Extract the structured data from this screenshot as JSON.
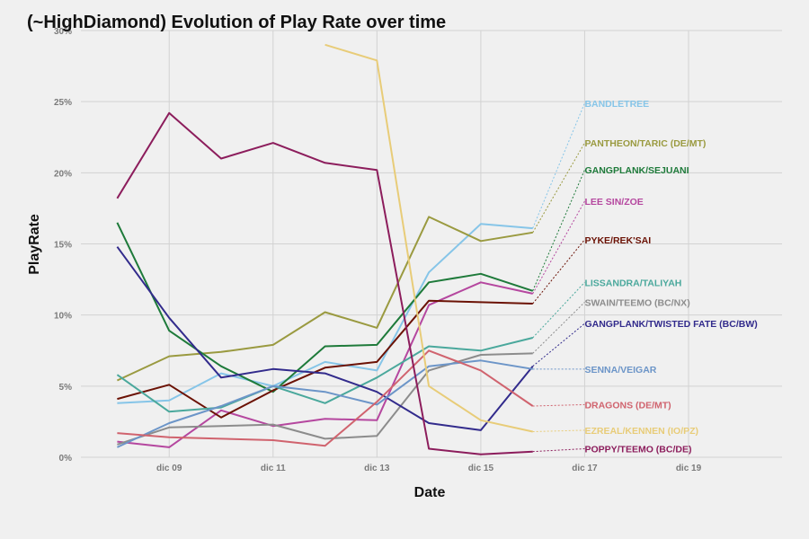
{
  "chart_data": {
    "type": "line",
    "title": "(~HighDiamond) Evolution of Play Rate over time",
    "xlabel": "Date",
    "ylabel": "PlayRate",
    "x": [
      8,
      9,
      10,
      11,
      12,
      13,
      14,
      15,
      16
    ],
    "xlim": [
      7.3,
      20.8
    ],
    "x_ticks": [
      9,
      11,
      13,
      15,
      17,
      19
    ],
    "x_tick_labels": [
      "dic 09",
      "dic 11",
      "dic 13",
      "dic 15",
      "dic 17",
      "dic 19"
    ],
    "ylim": [
      0,
      30
    ],
    "y_ticks": [
      0,
      5,
      10,
      15,
      20,
      25,
      30
    ],
    "y_tick_labels": [
      "0%",
      "5%",
      "10%",
      "15%",
      "20%",
      "25%",
      "30%"
    ],
    "grid": true,
    "legend": "direct labels at right",
    "series": [
      {
        "name": "BANDLETREE",
        "color": "#86c5e8",
        "label_y": 24.9,
        "values": [
          3.8,
          4.0,
          5.9,
          5.0,
          6.7,
          6.1,
          13.0,
          16.4,
          16.1
        ]
      },
      {
        "name": "PANTHEON/TARIC (DE/MT)",
        "color": "#9a9a40",
        "label_y": 22.1,
        "values": [
          5.4,
          7.1,
          7.4,
          7.9,
          10.2,
          9.1,
          16.9,
          15.2,
          15.8
        ]
      },
      {
        "name": "GANGPLANK/SEJUANI",
        "color": "#1e7a3a",
        "label_y": 20.2,
        "values": [
          16.5,
          8.9,
          6.4,
          4.6,
          7.8,
          7.9,
          12.3,
          12.9,
          11.7
        ]
      },
      {
        "name": "LEE SIN/ZOE",
        "color": "#b5479f",
        "label_y": 18.0,
        "values": [
          1.1,
          0.7,
          3.3,
          2.2,
          2.7,
          2.6,
          10.7,
          12.3,
          11.5
        ]
      },
      {
        "name": "PYKE/REK'SAI",
        "color": "#6b1205",
        "label_y": 15.3,
        "values": [
          4.1,
          5.1,
          2.8,
          4.7,
          6.3,
          6.7,
          11.0,
          10.9,
          10.8
        ]
      },
      {
        "name": "LISSANDRA/TALIYAH",
        "color": "#4aa89c",
        "label_y": 12.3,
        "values": [
          5.8,
          3.2,
          3.5,
          5.0,
          3.8,
          5.6,
          7.8,
          7.5,
          8.4
        ]
      },
      {
        "name": "SWAIN/TEEMO (BC/NX)",
        "color": "#8c8c8c",
        "label_y": 10.9,
        "values": [
          0.9,
          2.1,
          2.2,
          2.3,
          1.3,
          1.5,
          6.1,
          7.2,
          7.3
        ]
      },
      {
        "name": "GANGPLANK/TWISTED FATE (BC/BW)",
        "color": "#322b8c",
        "label_y": 9.4,
        "values": [
          14.8,
          9.8,
          5.6,
          6.2,
          5.9,
          4.6,
          2.4,
          1.9,
          6.4
        ]
      },
      {
        "name": "SENNA/VEIGAR",
        "color": "#6c95c8",
        "label_y": 6.2,
        "values": [
          0.7,
          2.4,
          3.6,
          5.0,
          4.6,
          3.7,
          6.4,
          6.8,
          6.2
        ]
      },
      {
        "name": "DRAGONS (DE/MT)",
        "color": "#d0636e",
        "label_y": 3.7,
        "values": [
          1.7,
          1.4,
          1.3,
          1.2,
          0.8,
          3.9,
          7.5,
          6.1,
          3.6
        ]
      },
      {
        "name": "EZREAL/KENNEN (IO/PZ)",
        "color": "#e8cc78",
        "label_y": 1.9,
        "values": [
          null,
          null,
          null,
          null,
          29.0,
          27.9,
          5.0,
          2.6,
          1.8
        ]
      },
      {
        "name": "POPPY/TEEMO (BC/DE)",
        "color": "#8c1d5c",
        "label_y": 0.6,
        "values": [
          18.2,
          24.2,
          21.0,
          22.1,
          20.7,
          20.2,
          0.6,
          0.2,
          0.4
        ]
      }
    ]
  }
}
